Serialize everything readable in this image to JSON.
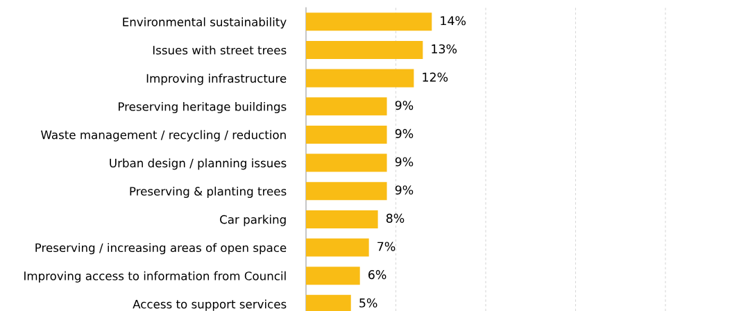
{
  "chart_data": {
    "type": "bar",
    "orientation": "horizontal",
    "categories": [
      "Environmental sustainability",
      "Issues with street trees",
      "Improving infrastructure",
      "Preserving heritage buildings",
      "Waste management / recycling / reduction",
      "Urban design / planning issues",
      "Preserving & planting trees",
      "Car parking",
      "Preserving / increasing areas of open space",
      "Improving access to information from Council",
      "Access to support services"
    ],
    "values": [
      14,
      13,
      12,
      9,
      9,
      9,
      9,
      8,
      7,
      6,
      5
    ],
    "value_labels": [
      "14%",
      "13%",
      "12%",
      "9%",
      "9%",
      "9%",
      "9%",
      "8%",
      "7%",
      "6%",
      "5%"
    ],
    "color": "#f9bc15",
    "xlim": [
      0,
      40
    ],
    "tick_labels": "y",
    "ref_lines": [
      {
        "axis": "x",
        "value": 10,
        "color": "#d8d8d8",
        "line_style": "dashed"
      },
      {
        "axis": "x",
        "value": 20,
        "color": "#d8d8d8",
        "line_style": "dashed"
      },
      {
        "axis": "x",
        "value": 30,
        "color": "#d8d8d8",
        "line_style": "dashed"
      },
      {
        "axis": "x",
        "value": 40,
        "color": "#d8d8d8",
        "line_style": "dashed"
      }
    ]
  }
}
